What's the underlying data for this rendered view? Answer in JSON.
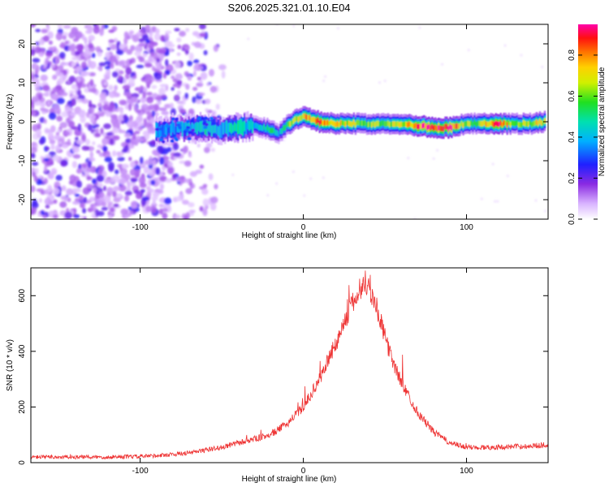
{
  "chart_data": [
    {
      "type": "heatmap",
      "title": "S206.2025.321.01.10.E04",
      "xlabel": "Height of straight line (km)",
      "ylabel": "Frequency (Hz)",
      "xlim": [
        -167,
        150
      ],
      "ylim": [
        -25,
        25
      ],
      "xticks": [
        "-100",
        "0",
        "100"
      ],
      "yticks": [
        "-20",
        "-10",
        "0",
        "10",
        "20"
      ],
      "colorbar": {
        "label": "Normalized spectral amplitude",
        "range": [
          0,
          0.95
        ],
        "ticks": [
          "0.0",
          "0.2",
          "0.4",
          "0.6",
          "0.8"
        ]
      },
      "noise_region_x": [
        -167,
        -65
      ],
      "ridge": {
        "x": [
          -90,
          -80,
          -70,
          -60,
          -50,
          -40,
          -30,
          -20,
          -15,
          -10,
          -5,
          0,
          10,
          20,
          40,
          60,
          70,
          80,
          90,
          100,
          110,
          120,
          130,
          140,
          148
        ],
        "freq": [
          -2.5,
          -2,
          -1.5,
          -1.5,
          -2,
          -1.5,
          -1,
          -2,
          -3,
          -1,
          0.5,
          1.5,
          0,
          -0.5,
          -0.5,
          -0.5,
          -1,
          -1.5,
          -1.5,
          -0.5,
          -0.5,
          -0.5,
          -0.5,
          -0.5,
          0
        ],
        "amplitude": [
          0.35,
          0.35,
          0.4,
          0.45,
          0.4,
          0.45,
          0.4,
          0.5,
          0.4,
          0.55,
          0.7,
          0.75,
          0.85,
          0.7,
          0.6,
          0.65,
          0.8,
          0.95,
          0.95,
          0.6,
          0.65,
          0.85,
          0.6,
          0.65,
          0.7
        ]
      }
    },
    {
      "type": "line",
      "xlabel": "Height of straight line (km)",
      "ylabel": "SNR (10 * v/v)",
      "xlim": [
        -167,
        150
      ],
      "ylim": [
        0,
        700
      ],
      "xticks": [
        "-100",
        "0",
        "100"
      ],
      "yticks": [
        "0",
        "200",
        "400",
        "600"
      ],
      "series": [
        {
          "color": "#ee3333",
          "x": [
            -167,
            -150,
            -120,
            -100,
            -90,
            -80,
            -70,
            -60,
            -50,
            -40,
            -30,
            -20,
            -10,
            0,
            10,
            20,
            25,
            30,
            35,
            38,
            40,
            45,
            50,
            55,
            60,
            70,
            80,
            90,
            100,
            110,
            120,
            130,
            140,
            150
          ],
          "y": [
            20,
            20,
            20,
            22,
            25,
            30,
            35,
            45,
            55,
            70,
            85,
            100,
            140,
            200,
            300,
            430,
            500,
            570,
            620,
            650,
            630,
            560,
            450,
            360,
            290,
            180,
            110,
            70,
            55,
            55,
            55,
            58,
            60,
            65
          ]
        }
      ]
    }
  ]
}
